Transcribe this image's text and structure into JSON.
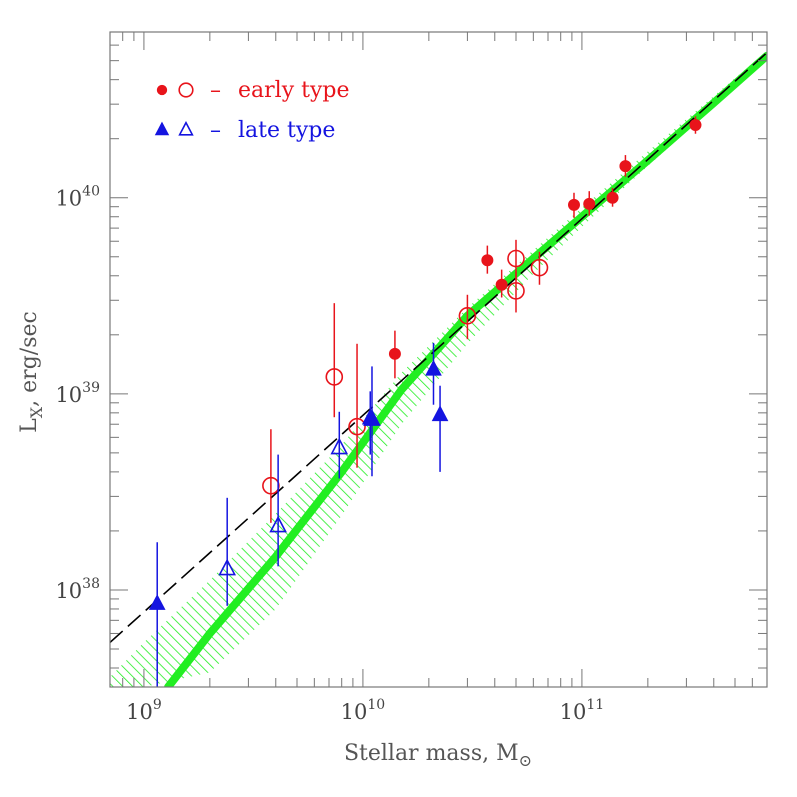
{
  "chart_data": {
    "type": "scatter",
    "title": "",
    "xlabel": {
      "main": "Stellar mass, M",
      "sub": "⊙"
    },
    "ylabel": {
      "main": "L",
      "sub": "X",
      "rest": ", erg/sec"
    },
    "x_scale": "log",
    "y_scale": "log",
    "xlim": [
      700000000,
      700000000000
    ],
    "ylim": [
      3.2e+37,
      7e+40
    ],
    "x_ticks": [
      {
        "value": 1000000000,
        "base": "10",
        "exp": "9"
      },
      {
        "value": 10000000000,
        "base": "10",
        "exp": "10"
      },
      {
        "value": 100000000000,
        "base": "10",
        "exp": "11"
      }
    ],
    "y_ticks": [
      {
        "value": 1e+38,
        "base": "10",
        "exp": "38"
      },
      {
        "value": 1e+39,
        "base": "10",
        "exp": "39"
      },
      {
        "value": 1e+40,
        "base": "10",
        "exp": "40"
      }
    ],
    "grid": false,
    "legend": {
      "position": "top-left",
      "entries": [
        {
          "markers": [
            "filled-circle",
            "open-circle"
          ],
          "dash": "–",
          "label": "early type",
          "color": "#e8141b"
        },
        {
          "markers": [
            "filled-triangle",
            "open-triangle"
          ],
          "dash": "–",
          "label": "late type",
          "color": "#1414e0"
        }
      ]
    },
    "colors": {
      "early": "#e8141b",
      "late": "#1414e0",
      "model": "#22ee22",
      "dashed": "#000000"
    },
    "series": [
      {
        "name": "early type",
        "marker": "filled-circle",
        "points": [
          {
            "x": 14000000000,
            "y": 1.6e+39,
            "ylo": 1.2e+39,
            "yhi": 2.1e+39
          },
          {
            "x": 37000000000,
            "y": 4.8e+39,
            "ylo": 4.1e+39,
            "yhi": 5.7e+39
          },
          {
            "x": 43000000000,
            "y": 3.6e+39,
            "ylo": 3.1e+39,
            "yhi": 4.3e+39
          },
          {
            "x": 92000000000,
            "y": 9.2e+39,
            "ylo": 7.9e+39,
            "yhi": 1.06e+40
          },
          {
            "x": 108000000000,
            "y": 9.3e+39,
            "ylo": 8.1e+39,
            "yhi": 1.08e+40
          },
          {
            "x": 138000000000,
            "y": 1e+40,
            "ylo": 9e+39,
            "yhi": 1.12e+40
          },
          {
            "x": 158000000000,
            "y": 1.45e+40,
            "ylo": 1.28e+40,
            "yhi": 1.65e+40
          },
          {
            "x": 330000000000,
            "y": 2.35e+40,
            "ylo": 2.12e+40,
            "yhi": 2.6e+40
          }
        ]
      },
      {
        "name": "early type",
        "marker": "open-circle",
        "points": [
          {
            "x": 3800000000,
            "y": 3.4e+38,
            "ylo": 2.2e+38,
            "yhi": 6.6e+38
          },
          {
            "x": 7400000000,
            "y": 1.22e+39,
            "ylo": 7.6e+38,
            "yhi": 2.9e+39
          },
          {
            "x": 9400000000,
            "y": 6.8e+38,
            "ylo": 4.2e+38,
            "yhi": 1.8e+39
          },
          {
            "x": 30000000000,
            "y": 2.5e+39,
            "ylo": 1.9e+39,
            "yhi": 3.2e+39
          },
          {
            "x": 50000000000,
            "y": 4.9e+39,
            "ylo": 3.8e+39,
            "yhi": 6.1e+39
          },
          {
            "x": 50000000000,
            "y": 3.35e+39,
            "ylo": 2.6e+39,
            "yhi": 4.2e+39
          },
          {
            "x": 64000000000,
            "y": 4.4e+39,
            "ylo": 3.6e+39,
            "yhi": 5.3e+39
          }
        ]
      },
      {
        "name": "late type",
        "marker": "filled-triangle",
        "points": [
          {
            "x": 1150000000,
            "y": 8.5e+37,
            "ylo": 3.2e+37,
            "yhi": 1.75e+38
          },
          {
            "x": 10800000000,
            "y": 7.5e+38,
            "ylo": 4.9e+38,
            "yhi": 1.03e+39
          },
          {
            "x": 21000000000,
            "y": 1.33e+39,
            "ylo": 8.8e+38,
            "yhi": 1.82e+39
          },
          {
            "x": 22500000000,
            "y": 7.8e+38,
            "ylo": 4e+38,
            "yhi": 1.1e+39
          }
        ]
      },
      {
        "name": "late type",
        "marker": "open-triangle",
        "points": [
          {
            "x": 2400000000,
            "y": 1.28e+38,
            "ylo": 8.3e+37,
            "yhi": 2.95e+38
          },
          {
            "x": 4100000000,
            "y": 2.12e+38,
            "ylo": 1.32e+38,
            "yhi": 4.9e+38
          },
          {
            "x": 7800000000,
            "y": 5.3e+38,
            "ylo": 3.7e+38,
            "yhi": 8.1e+38
          },
          {
            "x": 11000000000,
            "y": 7.4e+38,
            "ylo": 3.8e+38,
            "yhi": 1.38e+39
          }
        ]
      }
    ],
    "dashed_line": {
      "x": [
        700000000,
        700000000000
      ],
      "y": [
        5.4e+37,
        5.5e+40
      ]
    },
    "model_curve": {
      "x": [
        1290000000,
        2000000000,
        4000000000,
        8000000000,
        15000000000,
        30000000000,
        60000000000,
        100000000000,
        200000000000,
        400000000000,
        700000000000
      ],
      "y": [
        3.2e+37,
        6e+37,
        1.48e+38,
        4e+38,
        1.05e+39,
        2.5e+39,
        4.9e+39,
        8e+39,
        1.55e+40,
        3.05e+40,
        5.3e+40
      ]
    },
    "model_band": {
      "x": [
        700000000,
        1000000000,
        2000000000,
        4000000000,
        8000000000,
        15000000000,
        30000000000,
        60000000000,
        100000000000,
        200000000000,
        400000000000,
        700000000000
      ],
      "ylo": [
        3.2e+37,
        3.2e+37,
        3.8e+37,
        8e+37,
        2.4e+38,
        7e+38,
        1.8e+39,
        4.1e+39,
        7.1e+39,
        1.45e+40,
        2.9e+40,
        5.2e+40
      ],
      "yhi": [
        3.6e+37,
        5.4e+37,
        1.12e+38,
        2.45e+38,
        5.5e+38,
        1.28e+39,
        2.75e+39,
        5.4e+39,
        8.9e+39,
        1.72e+40,
        3.3e+40,
        5.6e+40
      ]
    }
  }
}
